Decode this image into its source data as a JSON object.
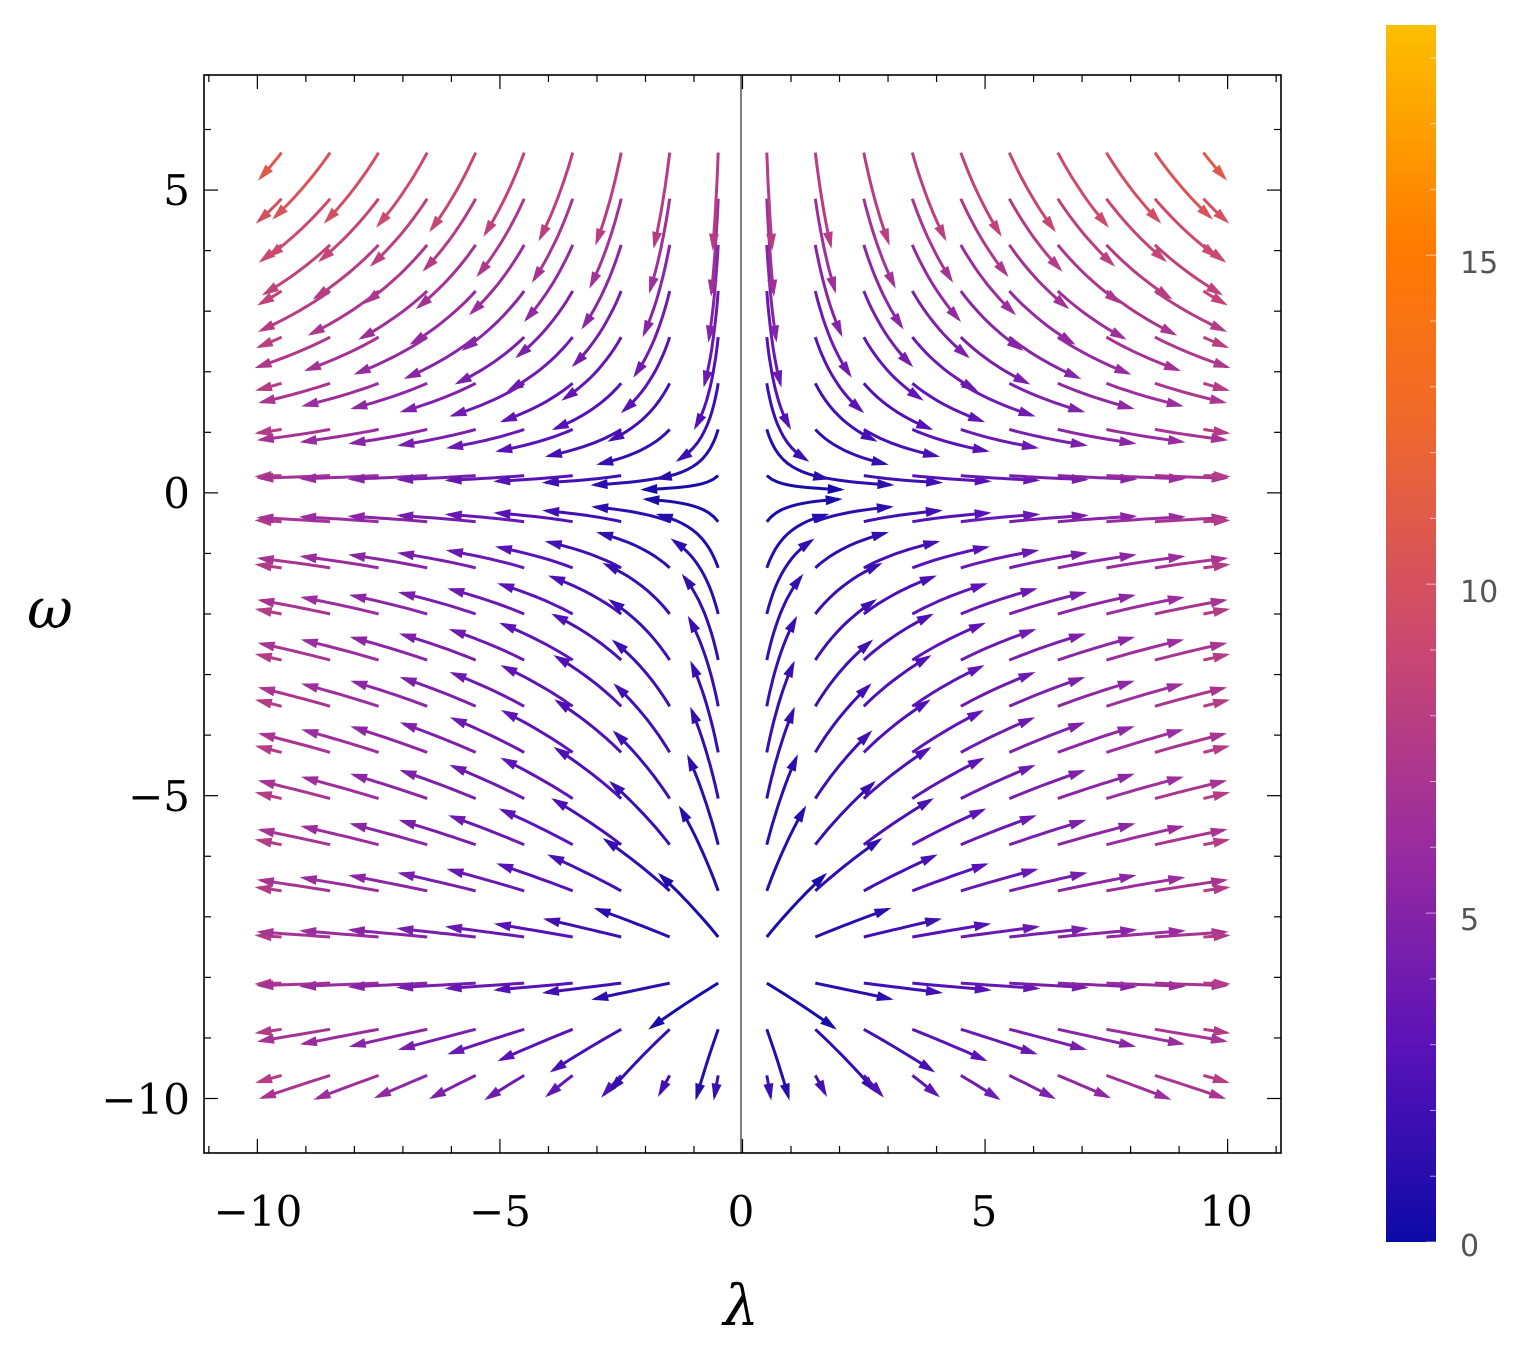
{
  "chart_data": {
    "type": "streamplot",
    "xlabel": "λ",
    "ylabel": "ω",
    "xlim": [
      -11.1,
      11.1
    ],
    "ylim": [
      -10.9,
      6.9
    ],
    "xticks": [
      {
        "value": -10,
        "label": "−10"
      },
      {
        "value": -5,
        "label": "−5"
      },
      {
        "value": 0,
        "label": "0"
      },
      {
        "value": 5,
        "label": "5"
      },
      {
        "value": 10,
        "label": "10"
      }
    ],
    "yticks": [
      {
        "value": 5,
        "label": "5"
      },
      {
        "value": 0,
        "label": "0"
      },
      {
        "value": -5,
        "label": "−5"
      },
      {
        "value": -10,
        "label": "−10"
      }
    ],
    "field": {
      "domain_x": [
        -10,
        10
      ],
      "domain_y": [
        -10,
        6
      ],
      "fixed_points": [
        [
          0,
          0
        ],
        [
          0,
          -5.5
        ]
      ],
      "nullcline_x": 0
    },
    "colorbar": {
      "min": 0,
      "max": 18.5,
      "ticks": [
        {
          "value": 15,
          "label": "15"
        },
        {
          "value": 10,
          "label": "10"
        },
        {
          "value": 5,
          "label": "5"
        },
        {
          "value": 0,
          "label": "0"
        }
      ],
      "colors": [
        "#0d0aa6",
        "#5a12b8",
        "#9b2d9e",
        "#cd4a6d",
        "#f06a2a",
        "#ff7b00",
        "#fcbf00"
      ]
    }
  }
}
